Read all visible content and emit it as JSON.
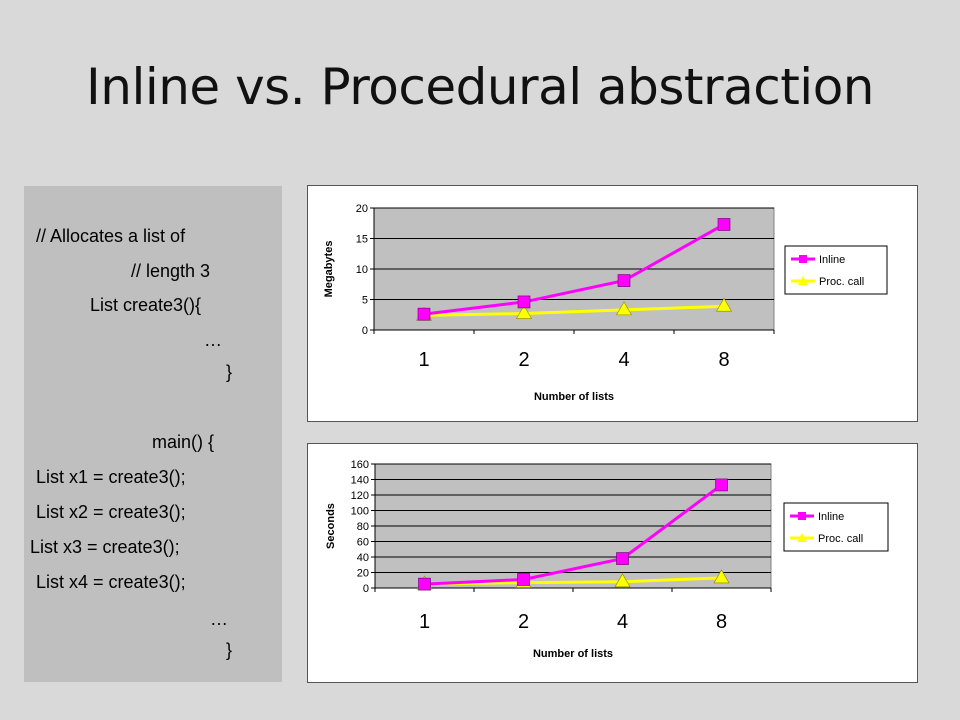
{
  "slide": {
    "title": "Inline vs. Procedural abstraction"
  },
  "code": {
    "lines": [
      "// Allocates a list of",
      "// length 3",
      "List create3(){",
      "…",
      "}",
      "main() {",
      "List x1 = create3();",
      "List x2 = create3();",
      "List x3 = create3();",
      "List x4 = create3();",
      "…",
      "}"
    ]
  },
  "chart_data": [
    {
      "type": "line",
      "xlabel": "Number of lists",
      "ylabel": "Megabytes",
      "categories": [
        "1",
        "2",
        "4",
        "8"
      ],
      "ylim": [
        0,
        20
      ],
      "yticks": [
        0,
        5,
        10,
        15,
        20
      ],
      "grid": true,
      "legend": "right",
      "series": [
        {
          "name": "Inline",
          "values": [
            2.6,
            4.6,
            8.1,
            17.3
          ],
          "color": "#ff00ff",
          "marker": "square"
        },
        {
          "name": "Proc. call",
          "values": [
            2.4,
            2.7,
            3.3,
            3.9
          ],
          "color": "#ffff00",
          "marker": "triangle"
        }
      ]
    },
    {
      "type": "line",
      "xlabel": "Number of lists",
      "ylabel": "Seconds",
      "categories": [
        "1",
        "2",
        "4",
        "8"
      ],
      "ylim": [
        0,
        160
      ],
      "yticks": [
        0,
        20,
        40,
        60,
        80,
        100,
        120,
        140,
        160
      ],
      "grid": true,
      "legend": "right",
      "series": [
        {
          "name": "Inline",
          "values": [
            5,
            11,
            38,
            133
          ],
          "color": "#ff00ff",
          "marker": "square"
        },
        {
          "name": "Proc. call",
          "values": [
            5,
            7,
            8,
            13
          ],
          "color": "#ffff00",
          "marker": "triangle"
        }
      ]
    }
  ]
}
